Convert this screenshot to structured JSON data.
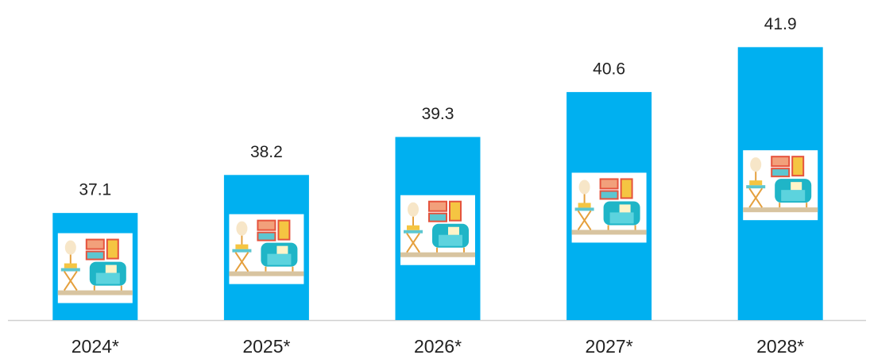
{
  "chart_data": {
    "type": "bar",
    "categories": [
      "2024*",
      "2025*",
      "2026*",
      "2027*",
      "2028*"
    ],
    "values": [
      37.1,
      38.2,
      39.3,
      40.6,
      41.9
    ],
    "color": "#00b0f0",
    "ylim": [
      34,
      43
    ]
  }
}
